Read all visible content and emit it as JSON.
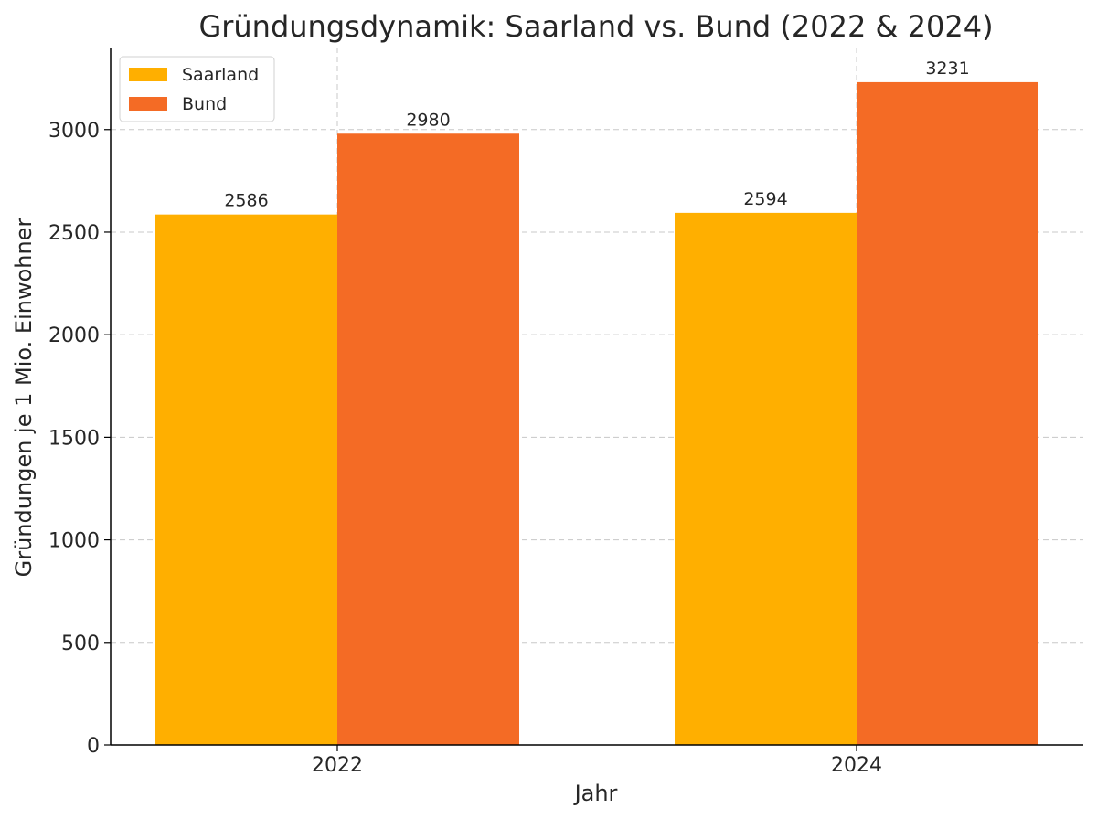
{
  "chart_data": {
    "type": "bar",
    "title": "Gründungsdynamik: Saarland vs. Bund (2022 & 2024)",
    "xlabel": "Jahr",
    "ylabel": "Gründungen je 1 Mio. Einwohner",
    "categories": [
      "2022",
      "2024"
    ],
    "series": [
      {
        "name": "Saarland",
        "color": "#FFAF00",
        "values": [
          2586,
          2594
        ]
      },
      {
        "name": "Bund",
        "color": "#F46B25",
        "values": [
          2980,
          3231
        ]
      }
    ],
    "ylim": [
      0,
      3400
    ],
    "yticks": [
      0,
      500,
      1000,
      1500,
      2000,
      2500,
      3000
    ],
    "grid": true,
    "legend_position": "top-left"
  }
}
